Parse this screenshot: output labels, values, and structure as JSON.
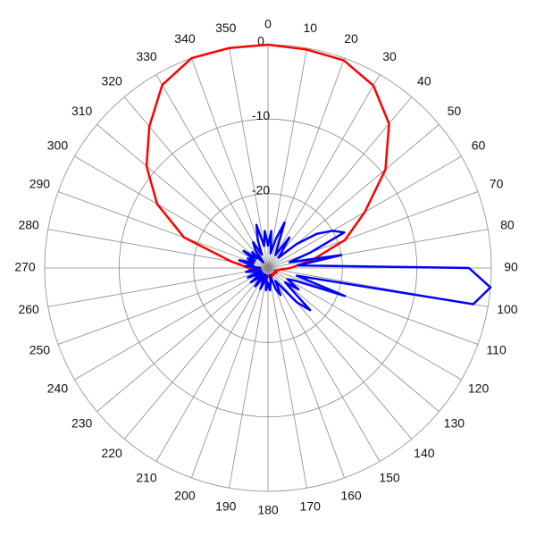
{
  "chart_data": {
    "type": "polar",
    "xlim": [
      0,
      360
    ],
    "xticks": [
      0,
      10,
      20,
      30,
      40,
      50,
      60,
      70,
      80,
      90,
      100,
      110,
      120,
      130,
      140,
      150,
      160,
      170,
      180,
      190,
      200,
      210,
      220,
      230,
      240,
      250,
      260,
      270,
      280,
      290,
      300,
      310,
      320,
      330,
      340,
      350
    ],
    "ylim": [
      -30,
      0
    ],
    "yticks": [
      -20,
      -10,
      0
    ],
    "grid": true,
    "series": [
      {
        "color": "#ff0000",
        "x": [
          0,
          10,
          20,
          30,
          40,
          50,
          60,
          70,
          80,
          90,
          100,
          110,
          120,
          130,
          140,
          150,
          160,
          170,
          180,
          190,
          200,
          210,
          220,
          230,
          240,
          250,
          260,
          270,
          280,
          290,
          300,
          310,
          320,
          330,
          340,
          350
        ],
        "values": [
          0,
          -0.2,
          -0.3,
          -1.7,
          -4.7,
          -9.4,
          -15,
          -19,
          -24,
          -27,
          -28.5,
          -29,
          -28.7,
          -29,
          -28.8,
          -29,
          -28.6,
          -29,
          -28.8,
          -29,
          -28.7,
          -29,
          -28.8,
          -29,
          -28.6,
          -29,
          -28,
          -27.4,
          -25,
          -18,
          -12.8,
          -8.7,
          -5.2,
          -1.6,
          0,
          0
        ]
      },
      {
        "color": "#0000ff",
        "x": [
          0,
          5,
          10,
          15,
          20,
          25,
          30,
          35,
          40,
          45,
          50,
          55,
          60,
          65,
          70,
          75,
          80,
          85,
          90,
          95,
          100,
          105,
          110,
          115,
          120,
          125,
          130,
          135,
          140,
          145,
          150,
          155,
          160,
          165,
          170,
          175,
          180,
          185,
          190,
          195,
          200,
          205,
          210,
          215,
          220,
          225,
          230,
          235,
          240,
          245,
          250,
          255,
          260,
          265,
          270,
          275,
          280,
          285,
          290,
          295,
          300,
          305,
          310,
          315,
          320,
          325,
          330,
          335,
          340,
          345,
          350,
          355
        ],
        "values": [
          -27,
          -25,
          -28,
          -26,
          -23.5,
          -27,
          -28,
          -25,
          -27,
          -28,
          -25,
          -22,
          -20,
          -18.7,
          -24,
          -27,
          -20,
          -26,
          -3,
          0,
          -2,
          -26,
          -19,
          -26,
          -27,
          -25,
          -27,
          -22,
          -24,
          -27,
          -28,
          -26,
          -27,
          -29,
          -28,
          -27,
          -28,
          -27,
          -29,
          -28,
          -27,
          -29,
          -28,
          -27,
          -29,
          -28,
          -27,
          -29,
          -28,
          -27,
          -29,
          -28,
          -27,
          -28,
          -29,
          -27,
          -28,
          -26,
          -28,
          -27,
          -28,
          -26,
          -28,
          -27,
          -29,
          -27,
          -26,
          -28,
          -26,
          -24,
          -27,
          -25
        ]
      }
    ]
  }
}
